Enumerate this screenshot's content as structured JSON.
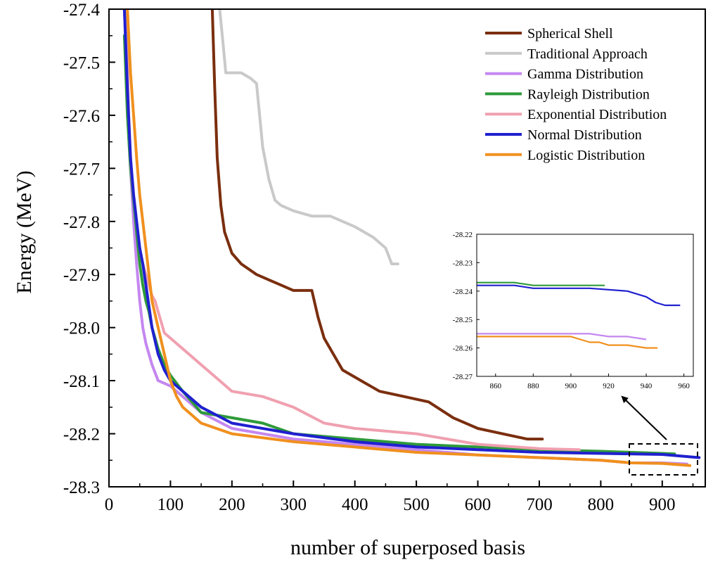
{
  "chart_data": {
    "type": "line",
    "title": "",
    "xlabel": "number of superposed basis",
    "ylabel": "Energy (MeV)",
    "xlim": [
      0,
      970
    ],
    "ylim": [
      -28.3,
      -27.4
    ],
    "x_ticks": [
      0,
      100,
      200,
      300,
      400,
      500,
      600,
      700,
      800,
      900
    ],
    "y_ticks": [
      -27.4,
      -27.5,
      -27.6,
      -27.7,
      -27.8,
      -27.9,
      -28.0,
      -28.1,
      -28.2,
      -28.3
    ],
    "x_tick_labels": [
      "0",
      "100",
      "200",
      "300",
      "400",
      "500",
      "600",
      "700",
      "800",
      "900"
    ],
    "y_tick_labels": [
      "-27.4",
      "-27.5",
      "-27.6",
      "-27.7",
      "-27.8",
      "-27.9",
      "-28.0",
      "-28.1",
      "-28.2",
      "-28.3"
    ],
    "legend_position": "top-right",
    "series": [
      {
        "name": "Spherical Shell",
        "color": "#7a2e0e",
        "x": [
          168,
          172,
          176,
          182,
          188,
          200,
          215,
          240,
          260,
          280,
          300,
          330,
          340,
          350,
          380,
          410,
          440,
          480,
          520,
          560,
          600,
          640,
          680,
          705
        ],
        "y": [
          -27.4,
          -27.55,
          -27.68,
          -27.77,
          -27.82,
          -27.86,
          -27.88,
          -27.9,
          -27.91,
          -27.92,
          -27.93,
          -27.93,
          -27.98,
          -28.02,
          -28.08,
          -28.1,
          -28.12,
          -28.13,
          -28.14,
          -28.17,
          -28.19,
          -28.2,
          -28.21,
          -28.21
        ]
      },
      {
        "name": "Traditional Approach",
        "color": "#c9c9c9",
        "x": [
          180,
          186,
          190,
          195,
          200,
          215,
          230,
          240,
          245,
          250,
          260,
          270,
          280,
          300,
          330,
          360,
          400,
          430,
          450,
          460,
          470
        ],
        "y": [
          -27.4,
          -27.47,
          -27.52,
          -27.52,
          -27.52,
          -27.52,
          -27.53,
          -27.54,
          -27.6,
          -27.66,
          -27.72,
          -27.76,
          -27.77,
          -27.78,
          -27.79,
          -27.79,
          -27.81,
          -27.83,
          -27.85,
          -27.88,
          -27.88
        ]
      },
      {
        "name": "Gamma Distribution",
        "color": "#c487f0",
        "x": [
          25,
          30,
          35,
          40,
          45,
          50,
          55,
          60,
          70,
          80,
          100,
          120,
          150,
          200,
          300,
          400,
          500,
          600,
          700,
          800,
          850,
          900,
          940
        ],
        "y": [
          -27.4,
          -27.55,
          -27.7,
          -27.8,
          -27.88,
          -27.95,
          -28.0,
          -28.03,
          -28.07,
          -28.1,
          -28.11,
          -28.13,
          -28.16,
          -28.19,
          -28.21,
          -28.22,
          -28.23,
          -28.24,
          -28.245,
          -28.25,
          -28.255,
          -28.255,
          -28.257
        ]
      },
      {
        "name": "Rayleigh Distribution",
        "color": "#2e9a3a",
        "x": [
          25,
          30,
          35,
          40,
          45,
          50,
          55,
          60,
          65,
          70,
          80,
          90,
          100,
          120,
          150,
          200,
          250,
          300,
          400,
          500,
          600,
          700,
          800,
          850,
          900,
          920
        ],
        "y": [
          -27.45,
          -27.6,
          -27.7,
          -27.76,
          -27.82,
          -27.88,
          -27.92,
          -27.95,
          -27.97,
          -28.0,
          -28.04,
          -28.07,
          -28.09,
          -28.12,
          -28.16,
          -28.17,
          -28.18,
          -28.2,
          -28.21,
          -28.22,
          -28.225,
          -28.23,
          -28.233,
          -28.235,
          -28.237,
          -28.238
        ]
      },
      {
        "name": "Exponential Distribution",
        "color": "#f0a0b0",
        "x": [
          28,
          32,
          36,
          40,
          45,
          50,
          55,
          60,
          65,
          70,
          75,
          80,
          85,
          90,
          100,
          120,
          150,
          180,
          200,
          250,
          300,
          350,
          400,
          500,
          600,
          700,
          765
        ],
        "y": [
          -27.4,
          -27.6,
          -27.7,
          -27.75,
          -27.8,
          -27.85,
          -27.88,
          -27.9,
          -27.92,
          -27.94,
          -27.95,
          -27.97,
          -27.99,
          -28.01,
          -28.02,
          -28.04,
          -28.07,
          -28.1,
          -28.12,
          -28.13,
          -28.15,
          -28.18,
          -28.19,
          -28.2,
          -28.22,
          -28.228,
          -28.23
        ]
      },
      {
        "name": "Normal Distribution",
        "color": "#2020d0",
        "x": [
          25,
          30,
          35,
          40,
          45,
          50,
          55,
          60,
          70,
          80,
          90,
          100,
          120,
          150,
          200,
          300,
          400,
          500,
          600,
          700,
          800,
          850,
          900,
          950,
          960
        ],
        "y": [
          -27.4,
          -27.55,
          -27.68,
          -27.75,
          -27.8,
          -27.85,
          -27.88,
          -27.92,
          -28.0,
          -28.05,
          -28.08,
          -28.1,
          -28.12,
          -28.15,
          -28.18,
          -28.2,
          -28.215,
          -28.225,
          -28.23,
          -28.235,
          -28.237,
          -28.238,
          -28.239,
          -28.244,
          -28.245
        ]
      },
      {
        "name": "Logistic Distribution",
        "color": "#f0901e",
        "x": [
          30,
          35,
          40,
          45,
          50,
          55,
          60,
          65,
          70,
          80,
          90,
          100,
          110,
          120,
          150,
          200,
          300,
          400,
          500,
          600,
          700,
          800,
          850,
          900,
          945
        ],
        "y": [
          -27.4,
          -27.52,
          -27.6,
          -27.68,
          -27.75,
          -27.8,
          -27.85,
          -27.9,
          -27.95,
          -28.0,
          -28.05,
          -28.1,
          -28.13,
          -28.15,
          -28.18,
          -28.2,
          -28.215,
          -28.225,
          -28.235,
          -28.24,
          -28.245,
          -28.25,
          -28.255,
          -28.256,
          -28.26
        ]
      }
    ],
    "inset": {
      "xlim": [
        850,
        965
      ],
      "ylim": [
        -28.27,
        -28.22
      ],
      "x_ticks": [
        860,
        880,
        900,
        920,
        940,
        960
      ],
      "y_ticks": [
        -28.22,
        -28.23,
        -28.24,
        -28.25,
        -28.26,
        -28.27
      ],
      "x_tick_labels": [
        "860",
        "880",
        "900",
        "920",
        "940",
        "960"
      ],
      "y_tick_labels": [
        "-28.22",
        "-28.23",
        "-28.24",
        "-28.25",
        "-28.26",
        "-28.27"
      ],
      "series": [
        {
          "name": "Rayleigh Distribution",
          "color": "#2e9a3a",
          "x": [
            850,
            870,
            880,
            890,
            900,
            910,
            918
          ],
          "y": [
            -28.237,
            -28.237,
            -28.238,
            -28.238,
            -28.238,
            -28.238,
            -28.238
          ]
        },
        {
          "name": "Normal Distribution",
          "color": "#2020d0",
          "x": [
            850,
            870,
            880,
            900,
            910,
            930,
            940,
            945,
            950,
            958
          ],
          "y": [
            -28.238,
            -28.238,
            -28.239,
            -28.239,
            -28.239,
            -28.24,
            -28.242,
            -28.244,
            -28.245,
            -28.245
          ]
        },
        {
          "name": "Gamma Distribution",
          "color": "#c487f0",
          "x": [
            850,
            870,
            880,
            900,
            910,
            920,
            930,
            940
          ],
          "y": [
            -28.255,
            -28.255,
            -28.255,
            -28.255,
            -28.255,
            -28.256,
            -28.256,
            -28.257
          ]
        },
        {
          "name": "Logistic Distribution",
          "color": "#f0901e",
          "x": [
            850,
            870,
            890,
            900,
            905,
            910,
            915,
            920,
            930,
            940,
            946
          ],
          "y": [
            -28.256,
            -28.256,
            -28.256,
            -28.256,
            -28.257,
            -28.258,
            -28.258,
            -28.259,
            -28.259,
            -28.26,
            -28.26
          ]
        }
      ]
    }
  }
}
